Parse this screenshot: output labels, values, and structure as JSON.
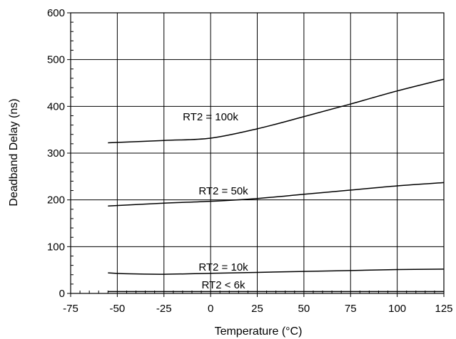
{
  "chart_data": {
    "type": "line",
    "xlabel": "Temperature (°C)",
    "ylabel": "Deadband Delay (ns)",
    "xlim": [
      -75,
      125
    ],
    "ylim": [
      0,
      600
    ],
    "x_ticks": [
      -75,
      -50,
      -25,
      0,
      25,
      50,
      75,
      100,
      125
    ],
    "y_ticks": [
      0,
      100,
      200,
      300,
      400,
      500,
      600
    ],
    "grid": true,
    "series": [
      {
        "name": "RT2 = 100k",
        "x": [
          -55,
          -25,
          0,
          25,
          50,
          75,
          100,
          125
        ],
        "values": [
          322,
          327,
          332,
          352,
          378,
          405,
          433,
          458
        ]
      },
      {
        "name": "RT2 = 50k",
        "x": [
          -55,
          -25,
          0,
          25,
          50,
          75,
          100,
          125
        ],
        "values": [
          187,
          193,
          197,
          203,
          212,
          221,
          230,
          237
        ]
      },
      {
        "name": "RT2 = 10k",
        "x": [
          -55,
          -45,
          -25,
          0,
          25,
          50,
          75,
          100,
          125
        ],
        "values": [
          44,
          42,
          41,
          43,
          45,
          47,
          49,
          51,
          52
        ]
      },
      {
        "name": "RT2 < 6k",
        "x": [
          -55,
          125
        ],
        "values": [
          4,
          4
        ]
      }
    ]
  }
}
